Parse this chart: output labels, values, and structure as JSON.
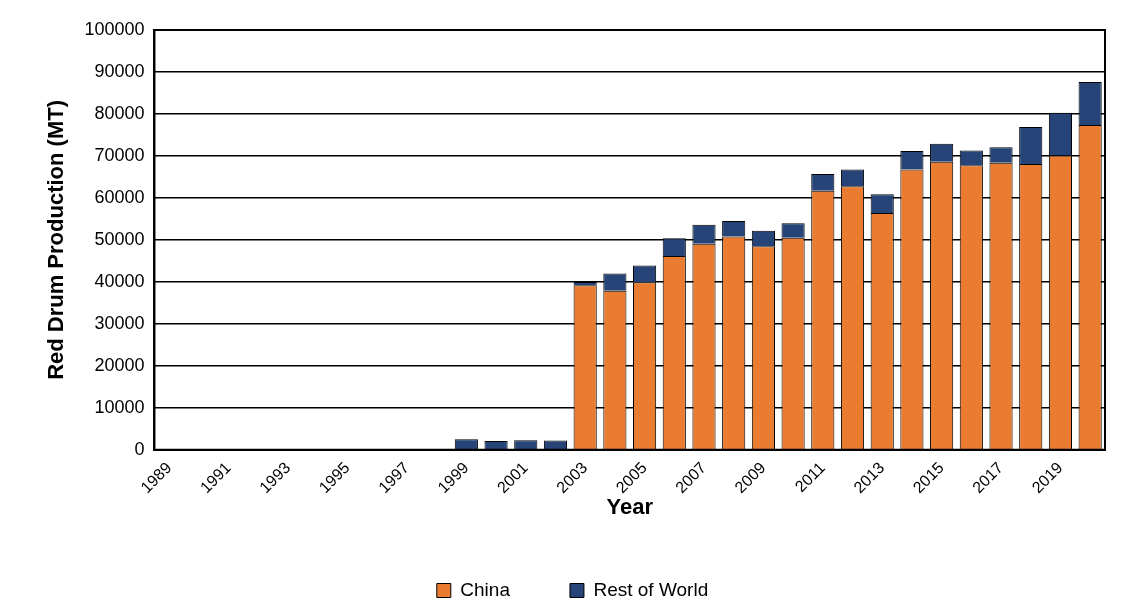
{
  "chart_data": {
    "type": "bar",
    "stacked": true,
    "xlabel": "Year",
    "ylabel": "Red Drum Production (MT)",
    "categories": [
      "1989",
      null,
      "1991",
      null,
      "1993",
      null,
      "1995",
      null,
      "1997",
      null,
      "1999",
      null,
      "2001",
      null,
      "2003",
      null,
      "2005",
      null,
      "2007",
      null,
      "2009",
      null,
      "2011",
      null,
      "2013",
      null,
      "2015",
      null,
      "2017",
      null,
      "2019",
      null
    ],
    "series": [
      {
        "name": "China",
        "color": "#e97c30",
        "values": [
          0,
          0,
          0,
          0,
          0,
          0,
          0,
          0,
          0,
          0,
          0,
          0,
          0,
          0,
          39200,
          37900,
          39900,
          46200,
          49100,
          50800,
          48500,
          50500,
          61700,
          62800,
          56400,
          66800,
          68600,
          67800,
          68400,
          68100,
          70100,
          77400
        ]
      },
      {
        "name": "Rest of World",
        "color": "#264478",
        "values": [
          0,
          0,
          0,
          0,
          0,
          0,
          0,
          0,
          0,
          null,
          2500,
          2100,
          2300,
          2200,
          800,
          4100,
          4000,
          4200,
          4500,
          3700,
          3700,
          3500,
          4000,
          4000,
          4500,
          4400,
          4300,
          3500,
          3700,
          8800,
          10200,
          10200
        ]
      }
    ],
    "ylim": [
      0,
      100000
    ],
    "yticks": [
      0,
      10000,
      20000,
      30000,
      40000,
      50000,
      60000,
      70000,
      80000,
      90000,
      100000
    ],
    "grid": "y",
    "legend": "bottom"
  }
}
